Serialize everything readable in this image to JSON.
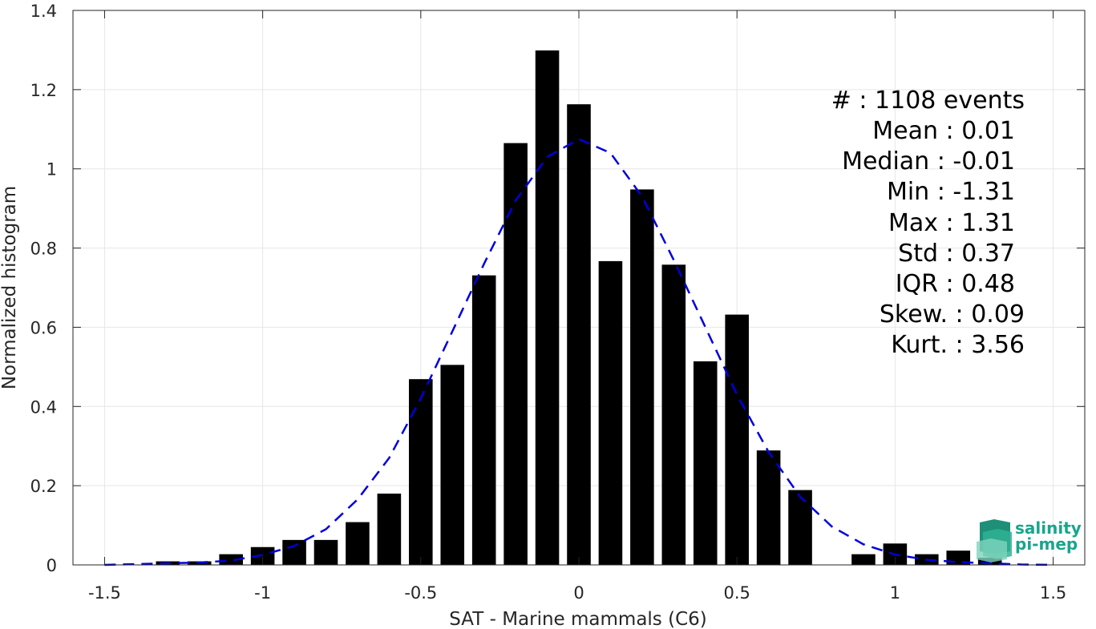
{
  "chart_data": {
    "type": "bar",
    "xlabel": "SAT - Marine mammals (C6)",
    "ylabel": "Normalized histogram",
    "xlim": [
      -1.6,
      1.6
    ],
    "ylim": [
      0,
      1.4
    ],
    "xticks": [
      -1.5,
      -1,
      -0.5,
      0,
      0.5,
      1,
      1.5
    ],
    "xtick_labels": [
      "-1.5",
      "-1",
      "-0.5",
      "0",
      "0.5",
      "1",
      "1.5"
    ],
    "yticks": [
      0,
      0.2,
      0.4,
      0.6,
      0.8,
      1,
      1.2,
      1.4
    ],
    "ytick_labels": [
      "0",
      "0.2",
      "0.4",
      "0.6",
      "0.8",
      "1",
      "1.2",
      "1.4"
    ],
    "grid": true,
    "bar_color": "#000000",
    "bin_width": 0.1,
    "bins": [
      -1.3,
      -1.2,
      -1.1,
      -1.0,
      -0.9,
      -0.8,
      -0.7,
      -0.6,
      -0.5,
      -0.4,
      -0.3,
      -0.2,
      -0.1,
      0.0,
      0.1,
      0.2,
      0.3,
      0.4,
      0.5,
      0.6,
      0.7,
      0.8,
      0.9,
      1.0,
      1.1,
      1.2,
      1.3
    ],
    "values": [
      0.009,
      0.009,
      0.027,
      0.045,
      0.063,
      0.063,
      0.108,
      0.18,
      0.469,
      0.505,
      0.731,
      1.065,
      1.299,
      1.163,
      0.767,
      0.948,
      0.758,
      0.514,
      0.632,
      0.289,
      0.189,
      0.0,
      0.027,
      0.054,
      0.027,
      0.036,
      0.018
    ],
    "fit_curve": {
      "style": "dashed",
      "color": "#0000dd",
      "x": [
        -1.5,
        -1.4,
        -1.3,
        -1.2,
        -1.1,
        -1.0,
        -0.9,
        -0.8,
        -0.7,
        -0.6,
        -0.5,
        -0.4,
        -0.3,
        -0.2,
        -0.1,
        0.0,
        0.1,
        0.2,
        0.3,
        0.4,
        0.5,
        0.6,
        0.7,
        0.8,
        0.9,
        1.0,
        1.1,
        1.2,
        1.3,
        1.4,
        1.5
      ],
      "y": [
        0.0,
        0.002,
        0.004,
        0.006,
        0.011,
        0.025,
        0.048,
        0.09,
        0.165,
        0.27,
        0.42,
        0.59,
        0.76,
        0.92,
        1.03,
        1.075,
        1.04,
        0.93,
        0.77,
        0.6,
        0.43,
        0.285,
        0.172,
        0.097,
        0.052,
        0.026,
        0.013,
        0.007,
        0.004,
        0.001,
        0.0
      ]
    },
    "annotations": [
      "#  : 1108 events",
      "Mean : 0.01",
      "Median : -0.01",
      "Min : -1.31",
      "Max : 1.31",
      "Std : 0.37",
      "IQR : 0.48",
      "Skew. : 0.09",
      "Kurt. : 3.56"
    ]
  },
  "logo": {
    "line1": "salinity",
    "line2": "pi-mep",
    "color": "#19a58c"
  }
}
